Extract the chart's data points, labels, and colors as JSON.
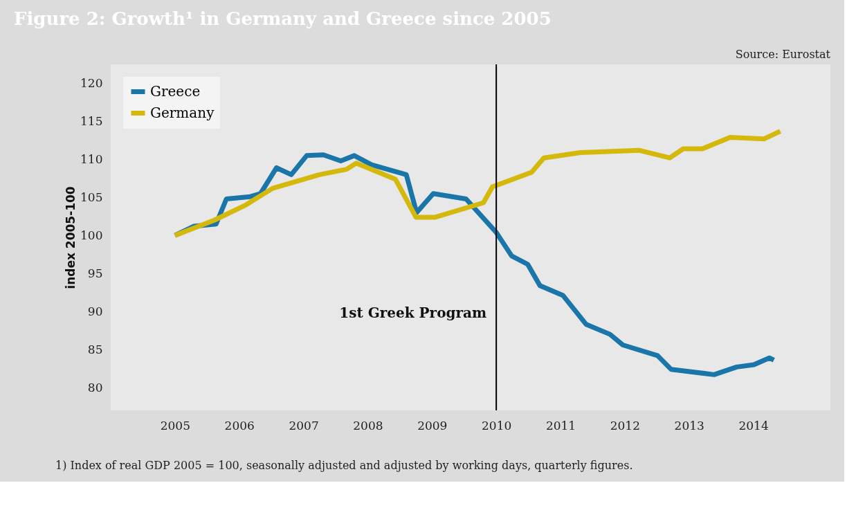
{
  "chart_data": {
    "type": "line",
    "title": "Figure 2: Growth¹ in Germany and Greece since 2005",
    "ylabel": "index 2005-100",
    "annotations": [
      "Source: Eurostat",
      "1) Index of real GDP 2005 = 100, seasonally adjusted and adjusted by working days, quarterly figures."
    ],
    "xlim": [
      2004,
      2015.2
    ],
    "xticks": [
      2005,
      2006,
      2007,
      2008,
      2009,
      2010,
      2011,
      2012,
      2013,
      2014
    ],
    "ylim": [
      77,
      122.5
    ],
    "yticks": [
      80,
      85,
      90,
      95,
      100,
      105,
      110,
      115,
      120
    ],
    "grid": false,
    "legend": "top left",
    "ref_lines": [
      {
        "axis": "x",
        "value": 2010,
        "label": "1st Greek Program",
        "color": "#000000"
      }
    ],
    "series": [
      {
        "name": "Greece",
        "color": "#1a75a8",
        "x": [
          2005,
          2005.29,
          2005.64,
          2005.8,
          2006.17,
          2006.33,
          2006.58,
          2006.81,
          2007.05,
          2007.31,
          2007.58,
          2007.79,
          2008.06,
          2008.6,
          2008.76,
          2009.02,
          2009.53,
          2010,
          2010.24,
          2010.49,
          2010.68,
          2011.04,
          2011.4,
          2011.77,
          2011.97,
          2012.51,
          2012.72,
          2013.39,
          2013.74,
          2014.01,
          2014.25,
          2014.32
        ],
        "values": [
          100,
          101.2,
          101.5,
          104.8,
          105.1,
          105.5,
          108.9,
          108.0,
          110.5,
          110.6,
          109.8,
          110.5,
          109.3,
          108.0,
          103.0,
          105.5,
          104.8,
          100.4,
          97.3,
          96.2,
          93.4,
          92.1,
          88.3,
          87.0,
          85.6,
          84.2,
          82.4,
          81.7,
          82.7,
          83.0,
          83.9,
          83.6
        ]
      },
      {
        "name": "Germany",
        "color": "#d4b90c",
        "x": [
          2005,
          2005.61,
          2006.1,
          2006.52,
          2007.25,
          2007.67,
          2007.82,
          2008.43,
          2008.75,
          2009.05,
          2009.8,
          2009.94,
          2010.55,
          2010.74,
          2011.31,
          2012.22,
          2012.7,
          2012.91,
          2013.21,
          2013.64,
          2014.17,
          2014.42
        ],
        "values": [
          100,
          102.0,
          104.0,
          106.2,
          108.0,
          108.7,
          109.5,
          107.4,
          102.4,
          102.4,
          104.3,
          106.4,
          108.3,
          110.2,
          110.9,
          111.2,
          110.2,
          111.4,
          111.4,
          112.9,
          112.7,
          113.7
        ]
      }
    ]
  }
}
